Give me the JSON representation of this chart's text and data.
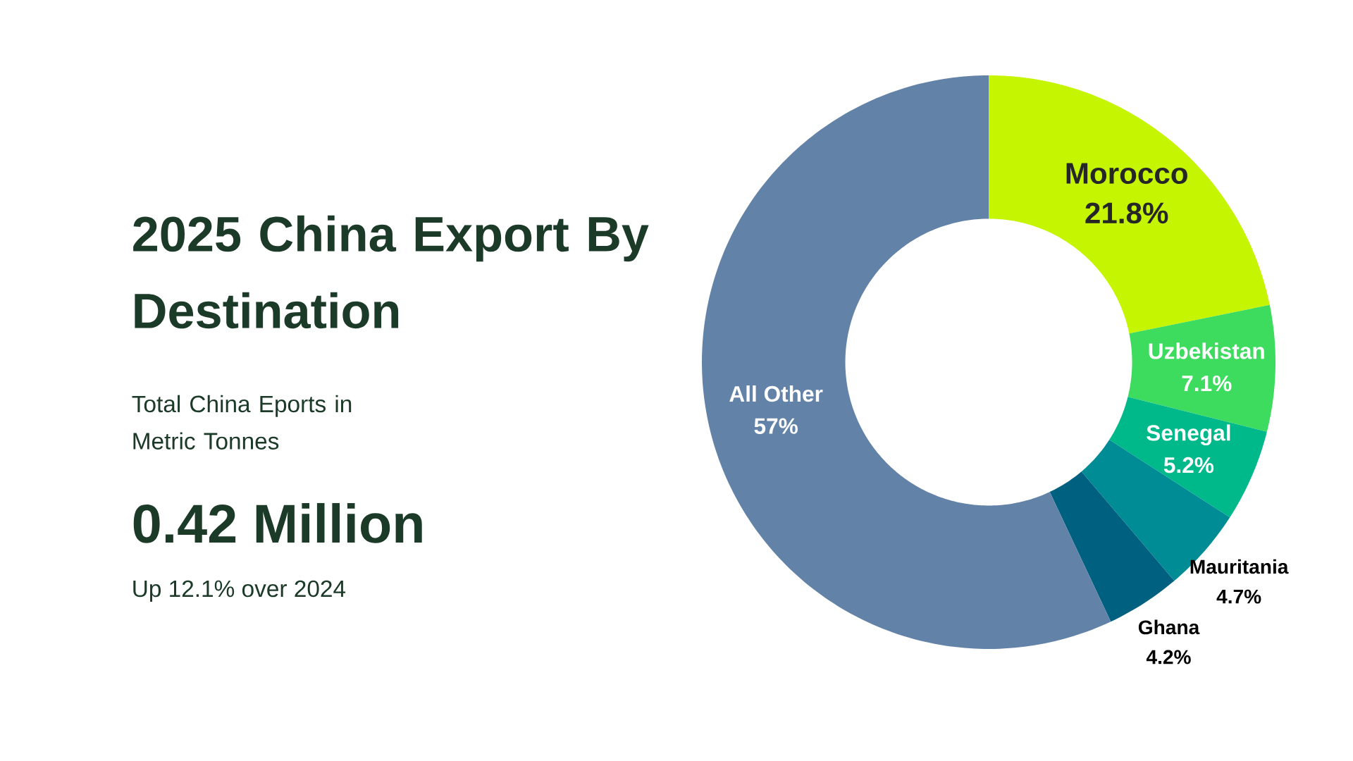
{
  "chart_data": {
    "type": "donut",
    "title": "2025 China Export By Destination",
    "subtitle": "Total China Eports in Metric Tonnes",
    "categories": [
      "Morocco",
      "Uzbekistan",
      "Senegal",
      "Mauritania",
      "Ghana",
      "All Other"
    ],
    "values": [
      21.8,
      7.1,
      5.2,
      4.7,
      4.2,
      57
    ],
    "colors": [
      "#c5f500",
      "#3ddc5f",
      "#00b98b",
      "#008c95",
      "#006080",
      "#6282a8"
    ],
    "value_labels": [
      "21.8%",
      "7.1%",
      "5.2%",
      "4.7%",
      "4.2%",
      "57%"
    ],
    "annotations": [
      "0.42 Million",
      "Up 12.1% over 2024"
    ]
  }
}
